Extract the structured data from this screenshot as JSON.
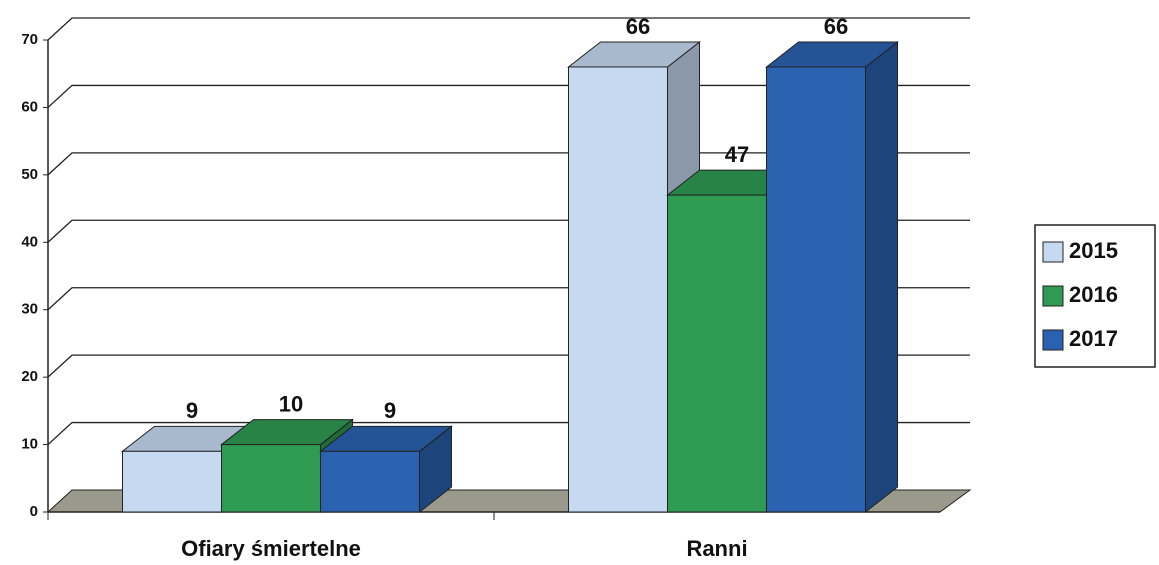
{
  "chart_data": {
    "type": "bar",
    "categories": [
      "Ofiary śmiertelne",
      "Ranni"
    ],
    "series": [
      {
        "name": "2015",
        "color": "#c6d9f1",
        "values": [
          9,
          66
        ]
      },
      {
        "name": "2016",
        "color": "#2e9a52",
        "values": [
          10,
          47
        ]
      },
      {
        "name": "2017",
        "color": "#2a62b0",
        "values": [
          9,
          66
        ]
      }
    ],
    "ylim": [
      0,
      70
    ],
    "yticks": [
      0,
      10,
      20,
      30,
      40,
      50,
      60,
      70
    ],
    "grid": true,
    "legend": "right"
  }
}
